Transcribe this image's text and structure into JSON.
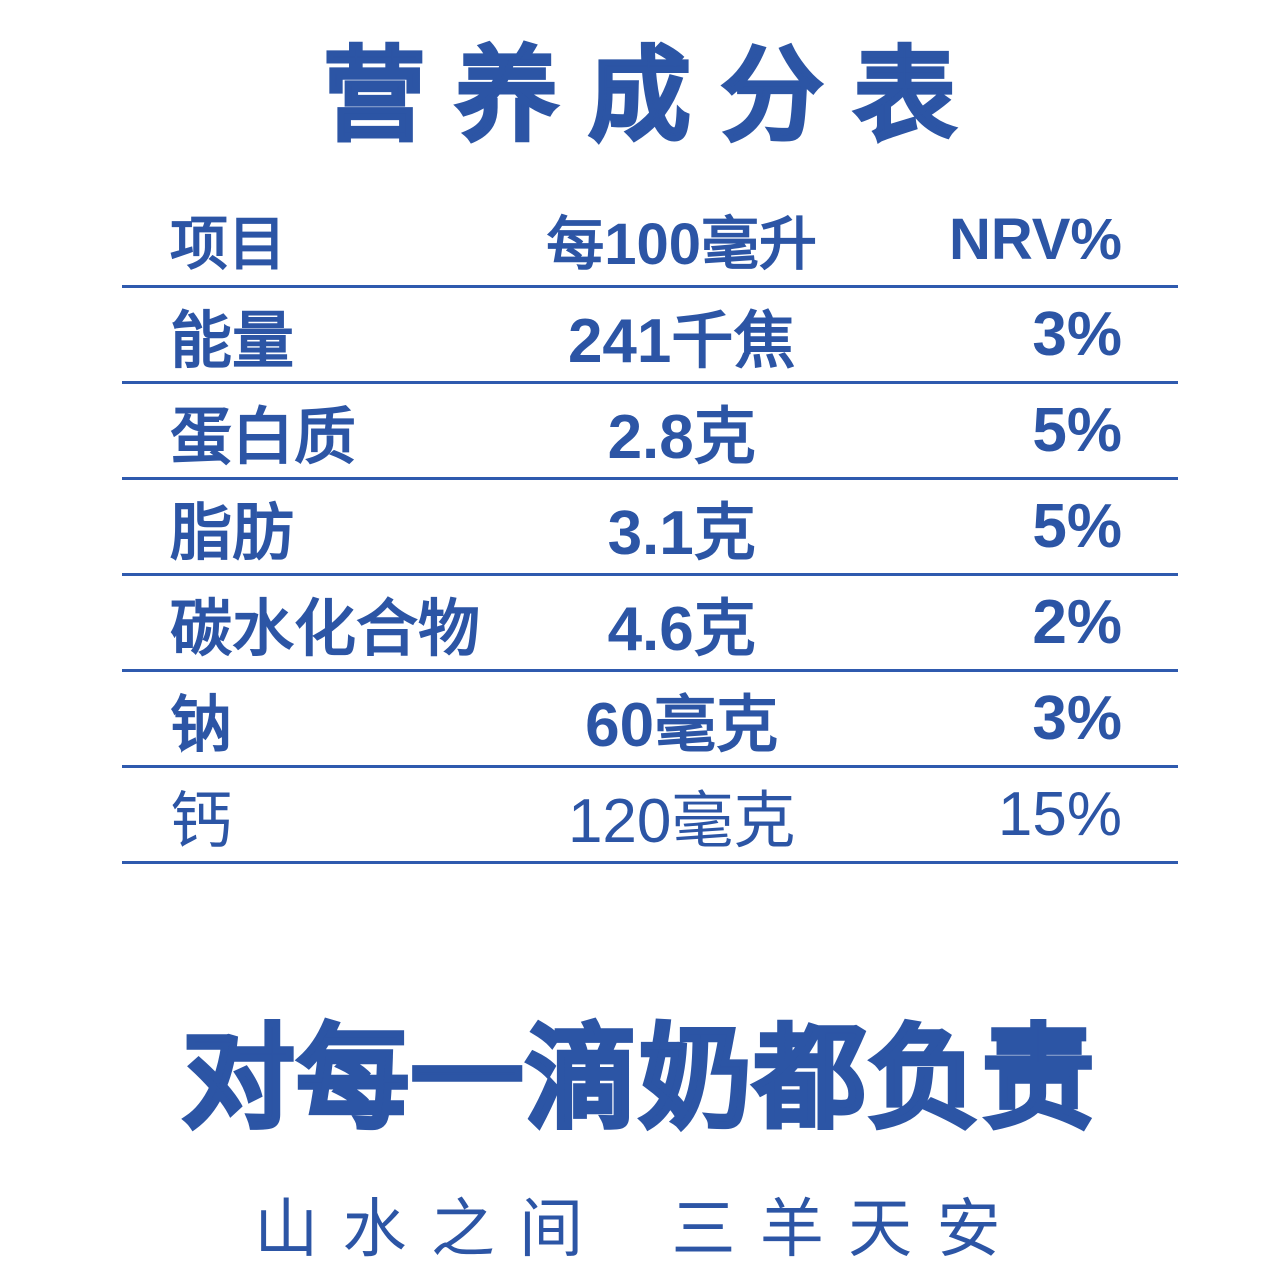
{
  "colors": {
    "accent": "#2C55A5",
    "rule": "#2F5AAE",
    "background": "#FFFFFF"
  },
  "title": "营养成分表",
  "table": {
    "columns": [
      "项目",
      "每100毫升",
      "NRV%"
    ],
    "rows": [
      {
        "item": "能量",
        "per_100ml": "241千焦",
        "nrv": "3%"
      },
      {
        "item": "蛋白质",
        "per_100ml": "2.8克",
        "nrv": "5%"
      },
      {
        "item": "脂肪",
        "per_100ml": "3.1克",
        "nrv": "5%"
      },
      {
        "item": "碳水化合物",
        "per_100ml": "4.6克",
        "nrv": "2%"
      },
      {
        "item": "钠",
        "per_100ml": "60毫克",
        "nrv": "3%"
      },
      {
        "item": "钙",
        "per_100ml": "120毫克",
        "nrv": "15%"
      }
    ]
  },
  "slogan": "对每一滴奶都负责",
  "tagline": {
    "left": "山水之间",
    "right": "三羊天安"
  }
}
